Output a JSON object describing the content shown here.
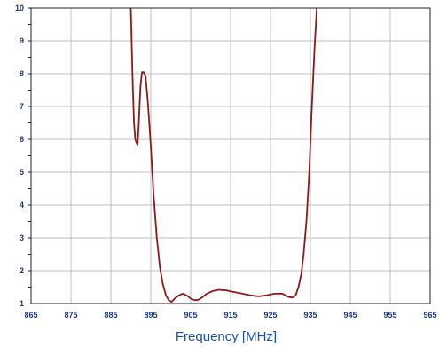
{
  "chart_data": {
    "type": "line",
    "title": "",
    "xlabel": "Frequency [MHz]",
    "ylabel": "",
    "xlim": [
      865,
      965
    ],
    "ylim": [
      1,
      10
    ],
    "grid": true,
    "x_ticks": [
      865,
      875,
      885,
      895,
      905,
      915,
      925,
      935,
      945,
      955,
      965
    ],
    "x_tick_labels": [
      "865",
      "875",
      "885",
      "895",
      "905",
      "915",
      "925",
      "935",
      "945",
      "955",
      "965"
    ],
    "y_ticks": [
      1,
      2,
      3,
      4,
      5,
      6,
      7,
      8,
      9,
      10
    ],
    "y_tick_labels": [
      "1",
      "2",
      "3",
      "4",
      "5",
      "6",
      "7",
      "8",
      "9",
      "10"
    ],
    "line_color": "#8b1a1a",
    "series": [
      {
        "x": [
          890.0,
          890.2,
          890.5,
          890.8,
          891.1,
          891.4,
          891.7,
          892.0,
          892.4,
          892.8,
          893.2,
          893.7,
          894.3,
          895.0,
          895.7,
          896.5,
          897.3,
          898.0,
          898.8,
          899.5,
          900.2,
          901.0,
          902.0,
          903.0,
          904.0,
          905.0,
          906.0,
          907.0,
          908.0,
          909.0,
          910.5,
          912.0,
          914.0,
          916.0,
          918.0,
          920.0,
          922.0,
          924.0,
          926.0,
          928.0,
          929.5,
          930.5,
          931.3,
          932.0,
          932.7,
          933.3,
          934.0,
          934.7,
          935.3,
          936.0,
          936.6
        ],
        "y": [
          10.0,
          9.0,
          7.5,
          6.5,
          6.0,
          5.9,
          5.85,
          6.5,
          7.6,
          8.05,
          8.05,
          7.9,
          7.1,
          5.8,
          4.3,
          3.0,
          2.1,
          1.6,
          1.25,
          1.1,
          1.05,
          1.15,
          1.25,
          1.3,
          1.25,
          1.15,
          1.1,
          1.12,
          1.2,
          1.3,
          1.38,
          1.42,
          1.4,
          1.35,
          1.3,
          1.25,
          1.22,
          1.25,
          1.3,
          1.3,
          1.2,
          1.18,
          1.25,
          1.5,
          1.9,
          2.5,
          3.5,
          5.0,
          6.8,
          8.7,
          10.0
        ]
      }
    ]
  }
}
